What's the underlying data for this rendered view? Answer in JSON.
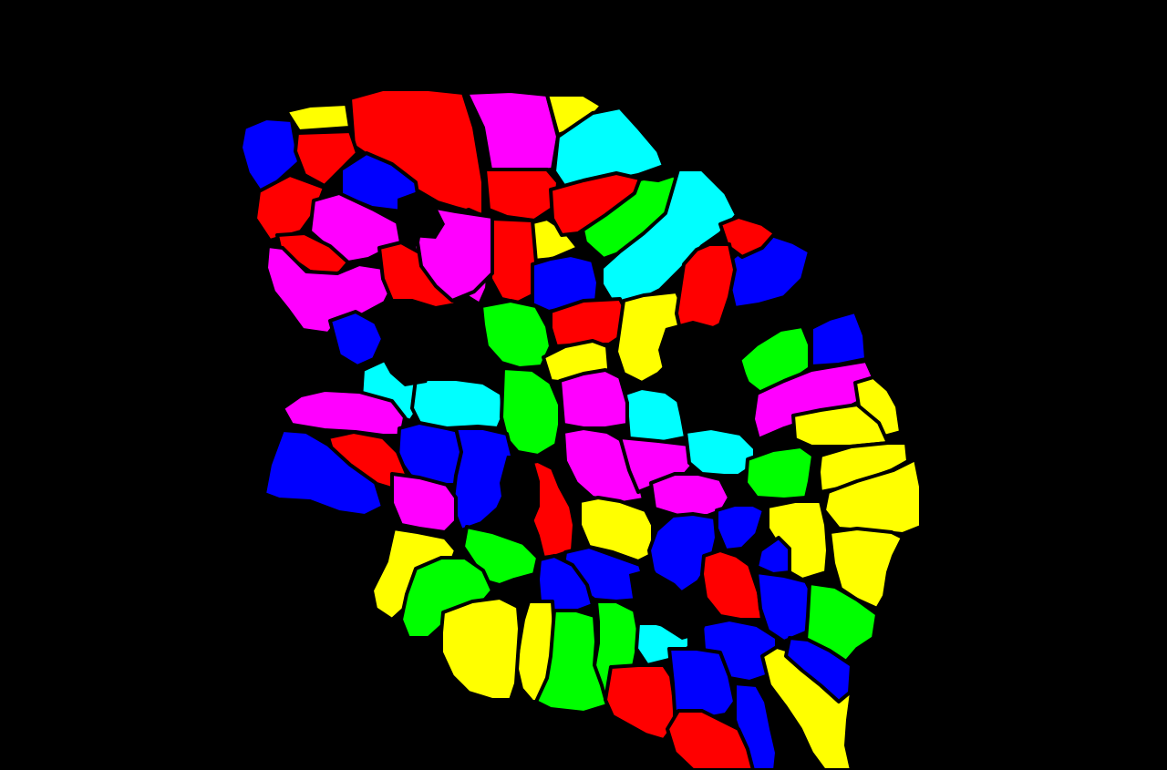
{
  "image": {
    "description_kind": "segmentation-mask",
    "background_color": "#000000",
    "boundary_color": "#000000",
    "palette": {
      "red": "#ff0000",
      "magenta": "#ff00ff",
      "yellow": "#ffff00",
      "cyan": "#00ffff",
      "blue": "#0000ff",
      "green": "#00ff00"
    }
  },
  "cells": [
    {
      "color": "blue"
    },
    {
      "color": "yellow"
    },
    {
      "color": "red"
    },
    {
      "color": "magenta"
    },
    {
      "color": "yellow"
    },
    {
      "color": "cyan"
    },
    {
      "color": "red"
    },
    {
      "color": "blue"
    },
    {
      "color": "red"
    },
    {
      "color": "magenta"
    },
    {
      "color": "red"
    },
    {
      "color": "green"
    },
    {
      "color": "cyan"
    },
    {
      "color": "magenta"
    },
    {
      "color": "red"
    },
    {
      "color": "yellow"
    },
    {
      "color": "magenta"
    },
    {
      "color": "red"
    },
    {
      "color": "red"
    },
    {
      "color": "blue"
    },
    {
      "color": "red"
    },
    {
      "color": "blue"
    },
    {
      "color": "magenta"
    },
    {
      "color": "red"
    },
    {
      "color": "green"
    },
    {
      "color": "red"
    },
    {
      "color": "yellow"
    },
    {
      "color": "red"
    },
    {
      "color": "blue"
    },
    {
      "color": "cyan"
    },
    {
      "color": "cyan"
    },
    {
      "color": "green"
    },
    {
      "color": "yellow"
    },
    {
      "color": "green"
    },
    {
      "color": "blue"
    },
    {
      "color": "magenta"
    },
    {
      "color": "magenta"
    },
    {
      "color": "cyan"
    },
    {
      "color": "magenta"
    },
    {
      "color": "yellow"
    },
    {
      "color": "yellow"
    },
    {
      "color": "blue"
    },
    {
      "color": "red"
    },
    {
      "color": "blue"
    },
    {
      "color": "blue"
    },
    {
      "color": "magenta"
    },
    {
      "color": "magenta"
    },
    {
      "color": "red"
    },
    {
      "color": "magenta"
    },
    {
      "color": "cyan"
    },
    {
      "color": "green"
    },
    {
      "color": "magenta"
    },
    {
      "color": "yellow"
    },
    {
      "color": "blue"
    },
    {
      "color": "yellow"
    },
    {
      "color": "yellow"
    },
    {
      "color": "blue"
    },
    {
      "color": "yellow"
    },
    {
      "color": "yellow"
    },
    {
      "color": "blue"
    },
    {
      "color": "yellow"
    },
    {
      "color": "green"
    },
    {
      "color": "blue"
    },
    {
      "color": "green"
    },
    {
      "color": "red"
    },
    {
      "color": "blue"
    },
    {
      "color": "blue"
    },
    {
      "color": "green"
    },
    {
      "color": "yellow"
    },
    {
      "color": "green"
    },
    {
      "color": "yellow"
    },
    {
      "color": "green"
    },
    {
      "color": "cyan"
    },
    {
      "color": "blue"
    },
    {
      "color": "red"
    },
    {
      "color": "blue"
    },
    {
      "color": "blue"
    },
    {
      "color": "yellow"
    },
    {
      "color": "red"
    },
    {
      "color": "blue"
    }
  ]
}
